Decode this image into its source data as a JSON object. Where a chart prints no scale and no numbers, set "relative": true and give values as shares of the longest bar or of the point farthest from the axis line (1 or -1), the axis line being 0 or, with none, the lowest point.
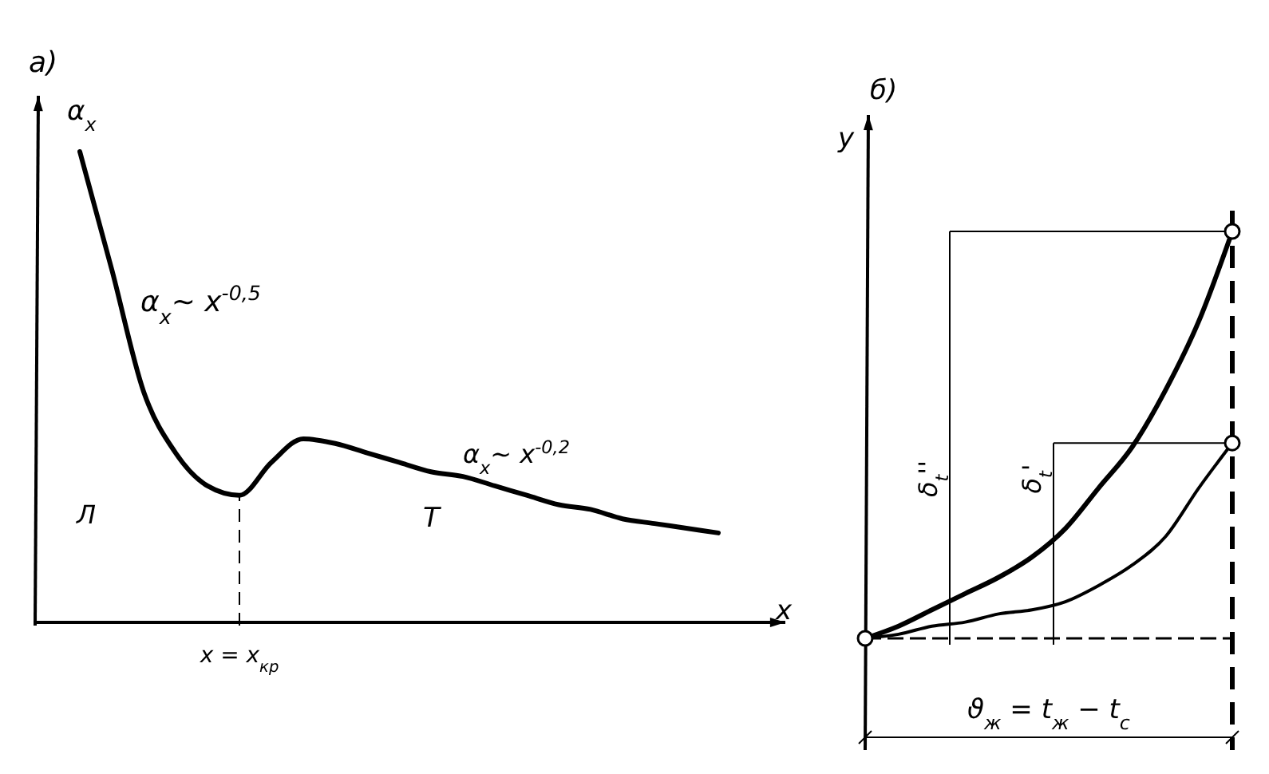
{
  "chart_data": [
    {
      "type": "line",
      "title": "а)",
      "ylabel": "α$_{x}$",
      "xlabel": "x",
      "relative": true,
      "color": "#000000",
      "categories": [
        null,
        null,
        null,
        null,
        null,
        null,
        null,
        null,
        null,
        null,
        null,
        null,
        null,
        null,
        null,
        null,
        null,
        null,
        null,
        null,
        null
      ],
      "values": [
        1,
        0.75,
        0.49,
        0.36,
        0.29,
        0.27,
        0.34,
        0.39,
        0.38,
        0.36,
        0.34,
        0.32,
        0.31,
        0.29,
        0.27,
        0.25,
        0.24,
        0.22,
        0.21,
        0.2,
        0.19
      ],
      "annotations": [
        "α$_{x}$~ x$^{-0,5}$",
        "α$_{x}$~ x$^{-0,2}$",
        "Л",
        "Т",
        "x = x$_{кр}$"
      ]
    },
    {
      "type": "line",
      "title": "б)",
      "ylabel": "y",
      "relative": true,
      "categories": [
        null,
        null,
        null,
        null,
        null,
        null,
        null,
        null,
        null,
        null,
        null,
        null
      ],
      "series": [
        {
          "color": "#000000",
          "values": [
            0,
            0.03,
            0.07,
            0.11,
            0.15,
            0.2,
            0.27,
            0.37,
            0.47,
            0.61,
            0.78,
            1
          ]
        },
        {
          "color": "#000000",
          "values": [
            0,
            0.01,
            0.03,
            0.04,
            0.06,
            0.07,
            0.09,
            0.13,
            0.18,
            0.25,
            0.37,
            0.48
          ]
        }
      ],
      "annotations": [
        "δ$_{t}$''",
        "δ$_{t}$'",
        "ϑ$_{ж}$ = t$_{ж}$ − t$_{с}$"
      ]
    }
  ]
}
